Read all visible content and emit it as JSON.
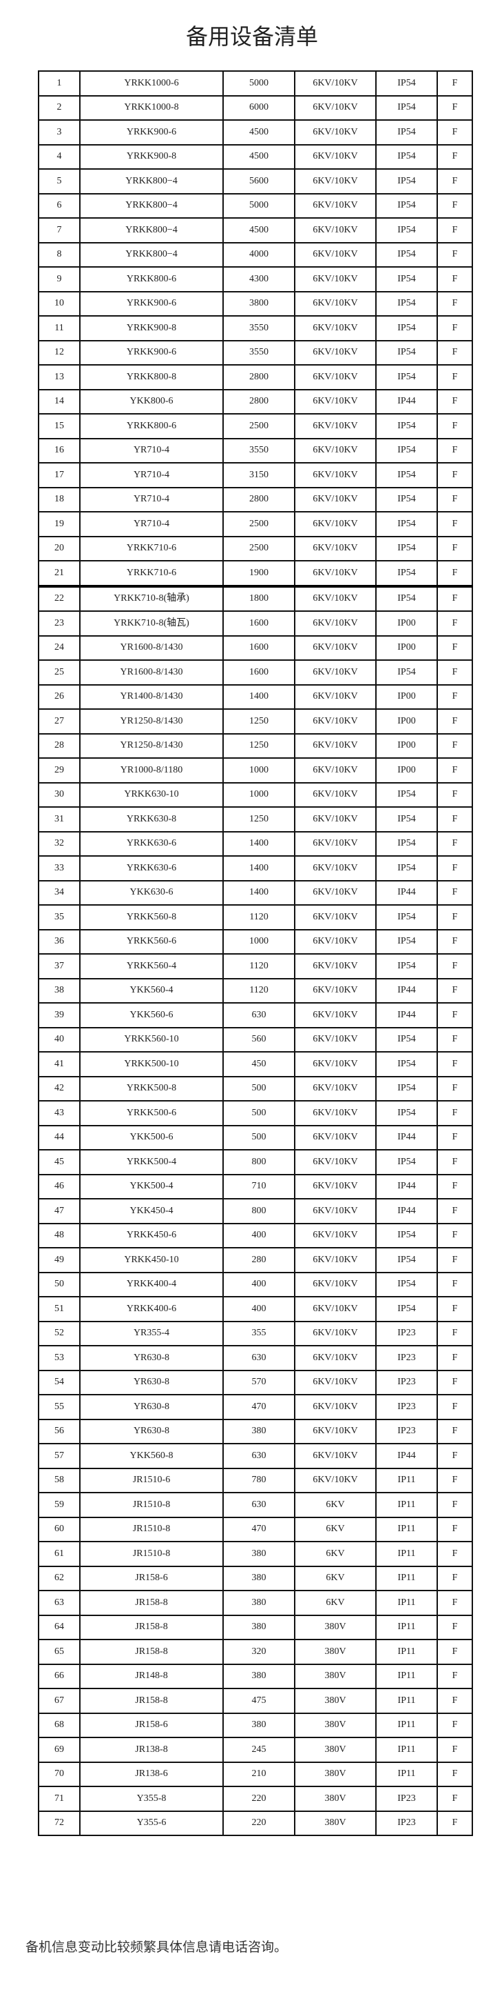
{
  "title": "备用设备清单",
  "footer_note": "备机信息变动比较频繁具体信息请电话咨询。",
  "table": {
    "rows": [
      [
        "1",
        "YRKK1000-6",
        "5000",
        "6KV/10KV",
        "IP54",
        "F"
      ],
      [
        "2",
        "YRKK1000-8",
        "6000",
        "6KV/10KV",
        "IP54",
        "F"
      ],
      [
        "3",
        "YRKK900-6",
        "4500",
        "6KV/10KV",
        "IP54",
        "F"
      ],
      [
        "4",
        "YRKK900-8",
        "4500",
        "6KV/10KV",
        "IP54",
        "F"
      ],
      [
        "5",
        "YRKK800−4",
        "5600",
        "6KV/10KV",
        "IP54",
        "F"
      ],
      [
        "6",
        "YRKK800−4",
        "5000",
        "6KV/10KV",
        "IP54",
        "F"
      ],
      [
        "7",
        "YRKK800−4",
        "4500",
        "6KV/10KV",
        "IP54",
        "F"
      ],
      [
        "8",
        "YRKK800−4",
        "4000",
        "6KV/10KV",
        "IP54",
        "F"
      ],
      [
        "9",
        "YRKK800-6",
        "4300",
        "6KV/10KV",
        "IP54",
        "F"
      ],
      [
        "10",
        "YRKK900-6",
        "3800",
        "6KV/10KV",
        "IP54",
        "F"
      ],
      [
        "11",
        "YRKK900-8",
        "3550",
        "6KV/10KV",
        "IP54",
        "F"
      ],
      [
        "12",
        "YRKK900-6",
        "3550",
        "6KV/10KV",
        "IP54",
        "F"
      ],
      [
        "13",
        "YRKK800-8",
        "2800",
        "6KV/10KV",
        "IP54",
        "F"
      ],
      [
        "14",
        "YKK800-6",
        "2800",
        "6KV/10KV",
        "IP44",
        "F"
      ],
      [
        "15",
        "YRKK800-6",
        "2500",
        "6KV/10KV",
        "IP54",
        "F"
      ],
      [
        "16",
        "YR710-4",
        "3550",
        "6KV/10KV",
        "IP54",
        "F"
      ],
      [
        "17",
        "YR710-4",
        "3150",
        "6KV/10KV",
        "IP54",
        "F"
      ],
      [
        "18",
        "YR710-4",
        "2800",
        "6KV/10KV",
        "IP54",
        "F"
      ],
      [
        "19",
        "YR710-4",
        "2500",
        "6KV/10KV",
        "IP54",
        "F"
      ],
      [
        "20",
        "YRKK710-6",
        "2500",
        "6KV/10KV",
        "IP54",
        "F"
      ],
      [
        "21",
        "YRKK710-6",
        "1900",
        "6KV/10KV",
        "IP54",
        "F"
      ],
      [
        "22",
        "YRKK710-8(轴承)",
        "1800",
        "6KV/10KV",
        "IP54",
        "F"
      ],
      [
        "23",
        "YRKK710-8(轴瓦)",
        "1600",
        "6KV/10KV",
        "IP00",
        "F"
      ],
      [
        "24",
        "YR1600-8/1430",
        "1600",
        "6KV/10KV",
        "IP00",
        "F"
      ],
      [
        "25",
        "YR1600-8/1430",
        "1600",
        "6KV/10KV",
        "IP54",
        "F"
      ],
      [
        "26",
        "YR1400-8/1430",
        "1400",
        "6KV/10KV",
        "IP00",
        "F"
      ],
      [
        "27",
        "YR1250-8/1430",
        "1250",
        "6KV/10KV",
        "IP00",
        "F"
      ],
      [
        "28",
        "YR1250-8/1430",
        "1250",
        "6KV/10KV",
        "IP00",
        "F"
      ],
      [
        "29",
        "YR1000-8/1180",
        "1000",
        "6KV/10KV",
        "IP00",
        "F"
      ],
      [
        "30",
        "YRKK630-10",
        "1000",
        "6KV/10KV",
        "IP54",
        "F"
      ],
      [
        "31",
        "YRKK630-8",
        "1250",
        "6KV/10KV",
        "IP54",
        "F"
      ],
      [
        "32",
        "YRKK630-6",
        "1400",
        "6KV/10KV",
        "IP54",
        "F"
      ],
      [
        "33",
        "YRKK630-6",
        "1400",
        "6KV/10KV",
        "IP54",
        "F"
      ],
      [
        "34",
        "YKK630-6",
        "1400",
        "6KV/10KV",
        "IP44",
        "F"
      ],
      [
        "35",
        "YRKK560-8",
        "1120",
        "6KV/10KV",
        "IP54",
        "F"
      ],
      [
        "36",
        "YRKK560-6",
        "1000",
        "6KV/10KV",
        "IP54",
        "F"
      ],
      [
        "37",
        "YRKK560-4",
        "1120",
        "6KV/10KV",
        "IP54",
        "F"
      ],
      [
        "38",
        "YKK560-4",
        "1120",
        "6KV/10KV",
        "IP44",
        "F"
      ],
      [
        "39",
        "YKK560-6",
        "630",
        "6KV/10KV",
        "IP44",
        "F"
      ],
      [
        "40",
        "YRKK560-10",
        "560",
        "6KV/10KV",
        "IP54",
        "F"
      ],
      [
        "41",
        "YRKK500-10",
        "450",
        "6KV/10KV",
        "IP54",
        "F"
      ],
      [
        "42",
        "YRKK500-8",
        "500",
        "6KV/10KV",
        "IP54",
        "F"
      ],
      [
        "43",
        "YRKK500-6",
        "500",
        "6KV/10KV",
        "IP54",
        "F"
      ],
      [
        "44",
        "YKK500-6",
        "500",
        "6KV/10KV",
        "IP44",
        "F"
      ],
      [
        "45",
        "YRKK500-4",
        "800",
        "6KV/10KV",
        "IP54",
        "F"
      ],
      [
        "46",
        "YKK500-4",
        "710",
        "6KV/10KV",
        "IP44",
        "F"
      ],
      [
        "47",
        "YKK450-4",
        "800",
        "6KV/10KV",
        "IP44",
        "F"
      ],
      [
        "48",
        "YRKK450-6",
        "400",
        "6KV/10KV",
        "IP54",
        "F"
      ],
      [
        "49",
        "YRKK450-10",
        "280",
        "6KV/10KV",
        "IP54",
        "F"
      ],
      [
        "50",
        "YRKK400-4",
        "400",
        "6KV/10KV",
        "IP54",
        "F"
      ],
      [
        "51",
        "YRKK400-6",
        "400",
        "6KV/10KV",
        "IP54",
        "F"
      ],
      [
        "52",
        "YR355-4",
        "355",
        "6KV/10KV",
        "IP23",
        "F"
      ],
      [
        "53",
        "YR630-8",
        "630",
        "6KV/10KV",
        "IP23",
        "F"
      ],
      [
        "54",
        "YR630-8",
        "570",
        "6KV/10KV",
        "IP23",
        "F"
      ],
      [
        "55",
        "YR630-8",
        "470",
        "6KV/10KV",
        "IP23",
        "F"
      ],
      [
        "56",
        "YR630-8",
        "380",
        "6KV/10KV",
        "IP23",
        "F"
      ],
      [
        "57",
        "YKK560-8",
        "630",
        "6KV/10KV",
        "IP44",
        "F"
      ],
      [
        "58",
        "JR1510-6",
        "780",
        "6KV/10KV",
        "IP11",
        "F"
      ],
      [
        "59",
        "JR1510-8",
        "630",
        "6KV",
        "IP11",
        "F"
      ],
      [
        "60",
        "JR1510-8",
        "470",
        "6KV",
        "IP11",
        "F"
      ],
      [
        "61",
        "JR1510-8",
        "380",
        "6KV",
        "IP11",
        "F"
      ],
      [
        "62",
        "JR158-6",
        "380",
        "6KV",
        "IP11",
        "F"
      ],
      [
        "63",
        "JR158-8",
        "380",
        "6KV",
        "IP11",
        "F"
      ],
      [
        "64",
        "JR158-8",
        "380",
        "380V",
        "IP11",
        "F"
      ],
      [
        "65",
        "JR158-8",
        "320",
        "380V",
        "IP11",
        "F"
      ],
      [
        "66",
        "JR148-8",
        "380",
        "380V",
        "IP11",
        "F"
      ],
      [
        "67",
        "JR158-8",
        "475",
        "380V",
        "IP11",
        "F"
      ],
      [
        "68",
        "JR158-6",
        "380",
        "380V",
        "IP11",
        "F"
      ],
      [
        "69",
        "JR138-8",
        "245",
        "380V",
        "IP11",
        "F"
      ],
      [
        "70",
        "JR138-6",
        "210",
        "380V",
        "IP11",
        "F"
      ],
      [
        "71",
        "Y355-8",
        "220",
        "380V",
        "IP23",
        "F"
      ],
      [
        "72",
        "Y355-6",
        "220",
        "380V",
        "IP23",
        "F"
      ]
    ]
  }
}
